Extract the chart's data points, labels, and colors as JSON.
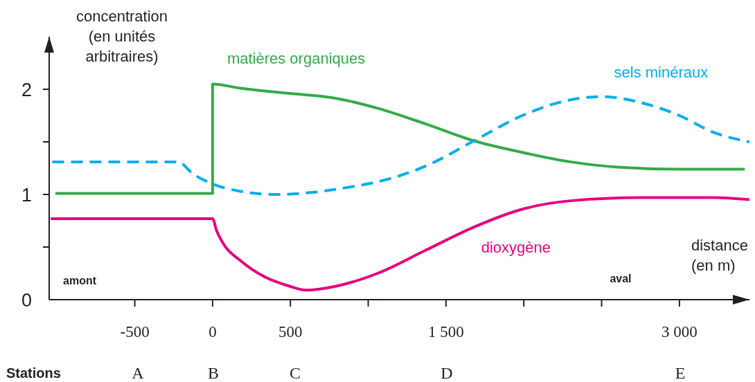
{
  "chart_data": {
    "type": "line",
    "xlabel": "distance (en m)",
    "ylabel": "concentration (en unités arbitraires)",
    "xlim": [
      -1050,
      3450
    ],
    "xticks": [
      -500,
      0,
      500,
      {
        "value": 1000,
        "label": null
      },
      {
        "value": 1500,
        "label": "1 500"
      },
      {
        "value": 2000,
        "label": null
      },
      {
        "value": 2500,
        "label": null
      },
      {
        "value": 3000,
        "label": "3 000"
      }
    ],
    "ylim": [
      0,
      2.5
    ],
    "yticks": [
      0,
      {
        "value": 0.5,
        "label": null
      },
      1,
      {
        "value": 1.5,
        "label": null
      },
      2
    ],
    "line_style": "solid",
    "marker": "none",
    "series": [
      {
        "name": "matières organiques",
        "color": "#33ab4a",
        "x": [
          -1010,
          0,
          0,
          180,
          500,
          770,
          1060,
          1370,
          1680,
          1990,
          2300,
          2600,
          3000,
          3420
        ],
        "values": [
          1.01,
          1.01,
          2.05,
          2.01,
          1.96,
          1.92,
          1.82,
          1.67,
          1.51,
          1.4,
          1.31,
          1.26,
          1.24,
          1.24
        ]
      },
      {
        "name": "sels minéraux",
        "color": "#00aeef",
        "line_style": "dashed",
        "x": [
          -1030,
          -220,
          -130,
          0,
          180,
          410,
          640,
          880,
          1060,
          1370,
          1680,
          1990,
          2300,
          2500,
          2760,
          3000,
          3220,
          3450
        ],
        "values": [
          1.31,
          1.31,
          1.2,
          1.1,
          1.03,
          1.0,
          1.02,
          1.07,
          1.12,
          1.27,
          1.51,
          1.75,
          1.9,
          1.93,
          1.87,
          1.75,
          1.59,
          1.5
        ]
      },
      {
        "name": "dioxygène",
        "color": "#e6007e",
        "x": [
          -1040,
          0,
          25,
          70,
          180,
          330,
          490,
          600,
          800,
          1060,
          1370,
          1680,
          1990,
          2300,
          2760,
          3220,
          3450
        ],
        "values": [
          0.77,
          0.77,
          0.66,
          0.53,
          0.37,
          0.22,
          0.13,
          0.09,
          0.13,
          0.25,
          0.47,
          0.69,
          0.86,
          0.94,
          0.97,
          0.97,
          0.95
        ]
      }
    ],
    "annotations": [
      "Stations",
      "A",
      "B",
      "C",
      "D",
      "E",
      "amont",
      "aval"
    ]
  }
}
